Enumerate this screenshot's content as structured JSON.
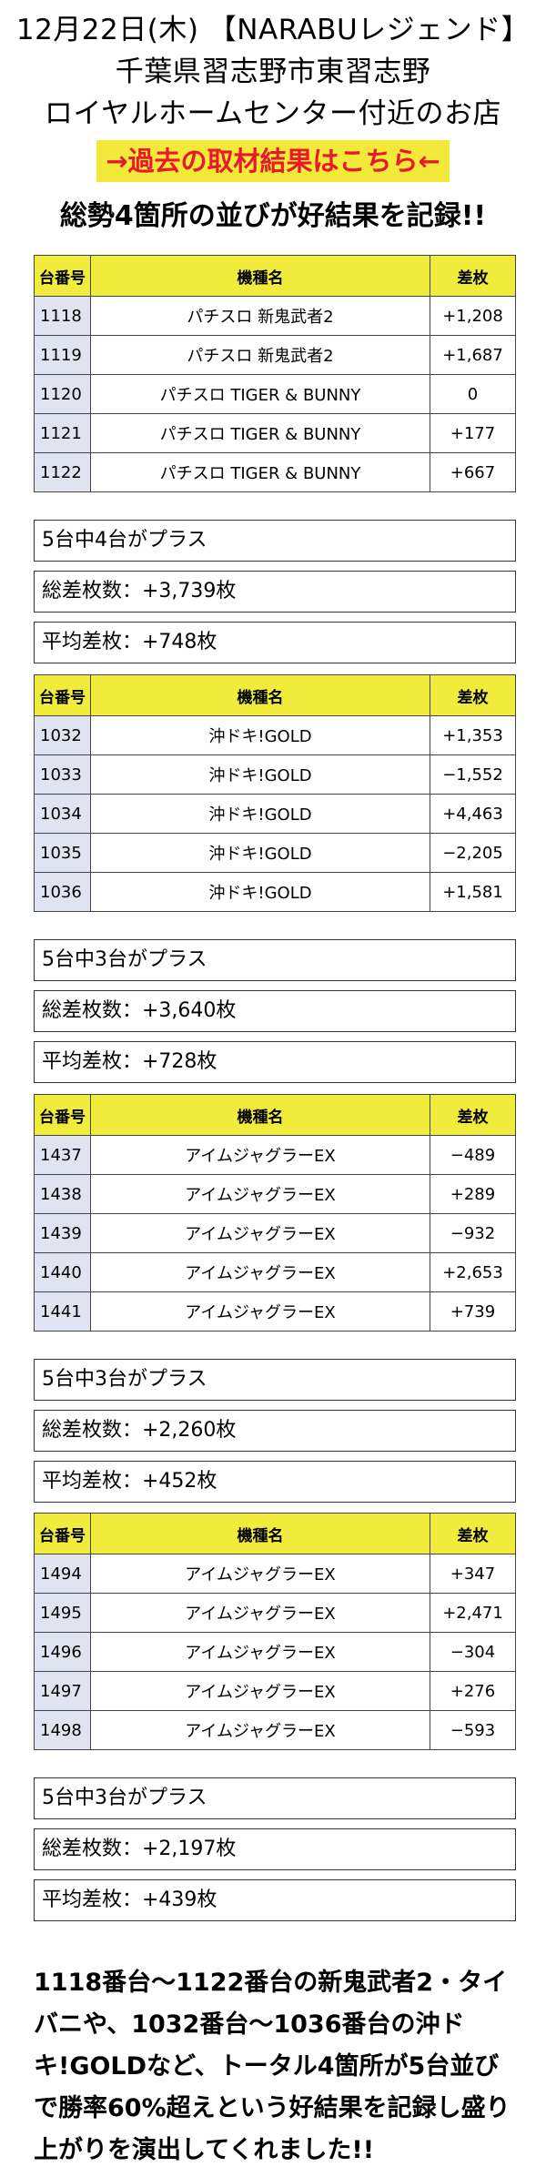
{
  "header": {
    "line1": "12月22日(木) 【NARABUレジェンド】",
    "line2": "千葉県習志野市東習志野",
    "line3": "ロイヤルホームセンター付近のお店"
  },
  "past_link": "→過去の取材結果はこちら←",
  "headline": "総勢4箇所の並びが好結果を記録!!",
  "columns": [
    "台番号",
    "機種名",
    "差枚"
  ],
  "groups": [
    {
      "rows": [
        {
          "no": "1118",
          "machine": "パチスロ 新鬼武者2",
          "diff": "+1,208"
        },
        {
          "no": "1119",
          "machine": "パチスロ 新鬼武者2",
          "diff": "+1,687"
        },
        {
          "no": "1120",
          "machine": "パチスロ TIGER & BUNNY",
          "diff": "0"
        },
        {
          "no": "1121",
          "machine": "パチスロ TIGER & BUNNY",
          "diff": "+177"
        },
        {
          "no": "1122",
          "machine": "パチスロ TIGER & BUNNY",
          "diff": "+667"
        }
      ],
      "summary": [
        "5台中4台がプラス",
        "総差枚数：+3,739枚",
        "平均差枚：+748枚"
      ]
    },
    {
      "rows": [
        {
          "no": "1032",
          "machine": "沖ドキ!GOLD",
          "diff": "+1,353"
        },
        {
          "no": "1033",
          "machine": "沖ドキ!GOLD",
          "diff": "−1,552"
        },
        {
          "no": "1034",
          "machine": "沖ドキ!GOLD",
          "diff": "+4,463"
        },
        {
          "no": "1035",
          "machine": "沖ドキ!GOLD",
          "diff": "−2,205"
        },
        {
          "no": "1036",
          "machine": "沖ドキ!GOLD",
          "diff": "+1,581"
        }
      ],
      "summary": [
        "5台中3台がプラス",
        "総差枚数：+3,640枚",
        "平均差枚：+728枚"
      ]
    },
    {
      "rows": [
        {
          "no": "1437",
          "machine": "アイムジャグラーEX",
          "diff": "−489"
        },
        {
          "no": "1438",
          "machine": "アイムジャグラーEX",
          "diff": "+289"
        },
        {
          "no": "1439",
          "machine": "アイムジャグラーEX",
          "diff": "−932"
        },
        {
          "no": "1440",
          "machine": "アイムジャグラーEX",
          "diff": "+2,653"
        },
        {
          "no": "1441",
          "machine": "アイムジャグラーEX",
          "diff": "+739"
        }
      ],
      "summary": [
        "5台中3台がプラス",
        "総差枚数：+2,260枚",
        "平均差枚：+452枚"
      ]
    },
    {
      "rows": [
        {
          "no": "1494",
          "machine": "アイムジャグラーEX",
          "diff": "+347"
        },
        {
          "no": "1495",
          "machine": "アイムジャグラーEX",
          "diff": "+2,471"
        },
        {
          "no": "1496",
          "machine": "アイムジャグラーEX",
          "diff": "−304"
        },
        {
          "no": "1497",
          "machine": "アイムジャグラーEX",
          "diff": "+276"
        },
        {
          "no": "1498",
          "machine": "アイムジャグラーEX",
          "diff": "−593"
        }
      ],
      "summary": [
        "5台中3台がプラス",
        "総差枚数：+2,197枚",
        "平均差枚：+439枚"
      ]
    }
  ],
  "closing": "1118番台〜1122番台の新鬼武者2・タイバニや、1032番台〜1036番台の沖ドキ!GOLDなど、トータル4箇所が5台並びで勝率60%超えという好結果を記録し盛り上がりを演出してくれました!!"
}
